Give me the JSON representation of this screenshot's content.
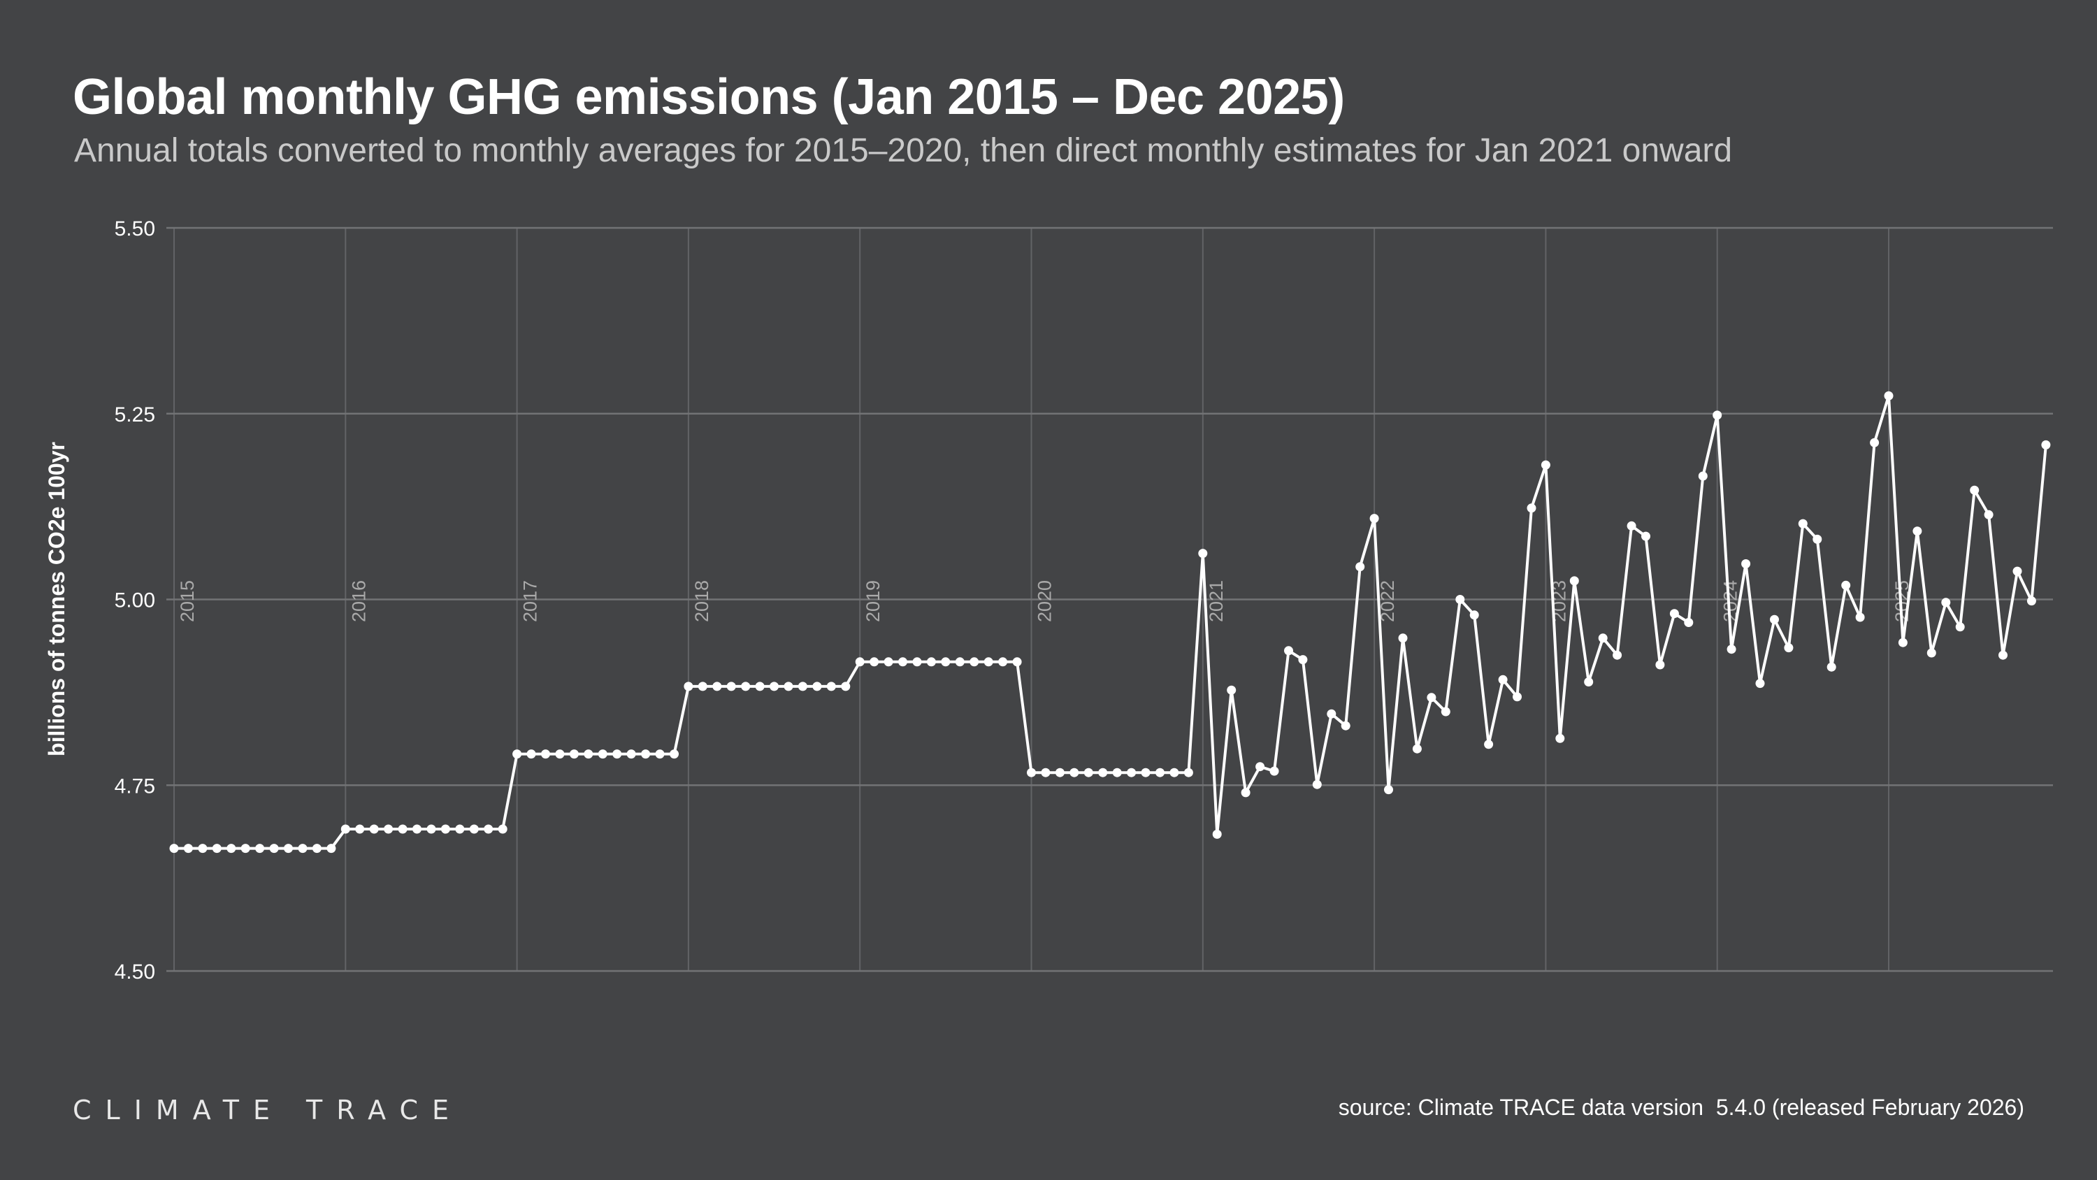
{
  "header": {
    "title": "Global monthly GHG emissions (Jan 2015 – Dec 2025)",
    "subtitle": "Annual totals converted to monthly averages for 2015–2020, then direct monthly estimates for Jan 2021 onward"
  },
  "footer": {
    "logo": "CLIMATE TRACE",
    "source": "source: Climate TRACE data version  5.4.0 (released February 2026)"
  },
  "colors": {
    "background": "#434446",
    "line": "#ffffff",
    "grid": "#626366",
    "year_label": "#a9a9a9"
  },
  "chart_data": {
    "type": "line",
    "title": "Global monthly GHG emissions (Jan 2015 – Dec 2025)",
    "xlabel": "",
    "ylabel": "billions of tonnes CO2e 100yr",
    "ylim": [
      4.5,
      5.5
    ],
    "yticks": [
      "4.50",
      "4.75",
      "5.00",
      "5.25",
      "5.50"
    ],
    "ytick_values": [
      4.5,
      4.75,
      5.0,
      5.25,
      5.5
    ],
    "year_labels": [
      "2015",
      "2016",
      "2017",
      "2018",
      "2019",
      "2020",
      "2021",
      "2022",
      "2023",
      "2024",
      "2025"
    ],
    "grid": true,
    "markers": true,
    "x_start": "Jan 2015",
    "x_end": "Dec 2025",
    "series": [
      {
        "name": "Global monthly GHG emissions",
        "years": [
          {
            "year": "2015",
            "values": [
              4.665,
              4.665,
              4.665,
              4.665,
              4.665,
              4.665,
              4.665,
              4.665,
              4.665,
              4.665,
              4.665,
              4.665
            ]
          },
          {
            "year": "2016",
            "values": [
              4.691,
              4.691,
              4.691,
              4.691,
              4.691,
              4.691,
              4.691,
              4.691,
              4.691,
              4.691,
              4.691,
              4.691
            ]
          },
          {
            "year": "2017",
            "values": [
              4.792,
              4.792,
              4.792,
              4.792,
              4.792,
              4.792,
              4.792,
              4.792,
              4.792,
              4.792,
              4.792,
              4.792
            ]
          },
          {
            "year": "2018",
            "values": [
              4.883,
              4.883,
              4.883,
              4.883,
              4.883,
              4.883,
              4.883,
              4.883,
              4.883,
              4.883,
              4.883,
              4.883
            ]
          },
          {
            "year": "2019",
            "values": [
              4.916,
              4.916,
              4.916,
              4.916,
              4.916,
              4.916,
              4.916,
              4.916,
              4.916,
              4.916,
              4.916,
              4.916
            ]
          },
          {
            "year": "2020",
            "values": [
              4.767,
              4.767,
              4.767,
              4.767,
              4.767,
              4.767,
              4.767,
              4.767,
              4.767,
              4.767,
              4.767,
              4.767
            ]
          },
          {
            "year": "2021",
            "values": [
              5.062,
              4.684,
              4.878,
              4.74,
              4.775,
              4.769,
              4.931,
              4.919,
              4.751,
              4.846,
              4.83,
              5.044
            ]
          },
          {
            "year": "2022",
            "values": [
              5.109,
              4.744,
              4.948,
              4.799,
              4.868,
              4.849,
              5.0,
              4.979,
              4.805,
              4.892,
              4.869,
              5.123
            ]
          },
          {
            "year": "2023",
            "values": [
              5.181,
              4.813,
              5.025,
              4.889,
              4.948,
              4.925,
              5.099,
              5.085,
              4.912,
              4.981,
              4.969,
              5.166
            ]
          },
          {
            "year": "2024",
            "values": [
              5.248,
              4.933,
              5.048,
              4.887,
              4.973,
              4.935,
              5.102,
              5.081,
              4.909,
              5.019,
              4.976,
              5.211
            ]
          },
          {
            "year": "2025",
            "values": [
              5.274,
              4.942,
              5.092,
              4.928,
              4.996,
              4.963,
              5.147,
              5.114,
              4.925,
              5.038,
              4.998,
              5.208
            ]
          }
        ]
      }
    ]
  }
}
